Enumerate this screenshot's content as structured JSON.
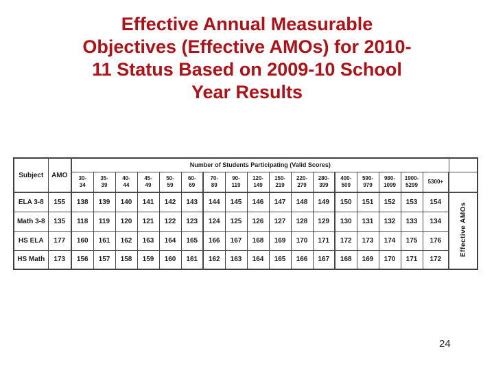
{
  "title": {
    "lines": [
      "Effective Annual Measurable",
      "Objectives (Effective AMOs) for 2010-",
      "11 Status Based on 2009-10 School",
      "Year Results"
    ],
    "color": "#b01116"
  },
  "page_number": "24",
  "table": {
    "subject_header": "Subject",
    "amo_header": "AMO",
    "group_header": "Number of Students Participating (Valid Scores)",
    "side_label": "Effective AMOs",
    "bins": [
      "30-\n34",
      "35-\n39",
      "40-\n44",
      "45-\n49",
      "50-\n59",
      "60-\n69",
      "70-\n89",
      "90-\n119",
      "120-\n149",
      "150-\n219",
      "220-\n279",
      "280-\n399",
      "400-\n509",
      "590-\n979",
      "980-\n1099",
      "1900-\n5299",
      "5300+"
    ],
    "thick_after_bins": [
      5,
      11,
      16
    ],
    "rows": [
      {
        "subject": "ELA 3-8",
        "amo": "155",
        "values": [
          138,
          139,
          140,
          141,
          142,
          143,
          144,
          145,
          146,
          147,
          148,
          149,
          150,
          151,
          152,
          153,
          154
        ]
      },
      {
        "subject": "Math 3-8",
        "amo": "135",
        "values": [
          118,
          119,
          120,
          121,
          122,
          123,
          124,
          125,
          126,
          127,
          128,
          129,
          130,
          131,
          132,
          133,
          134
        ]
      },
      {
        "subject": "HS ELA",
        "amo": "177",
        "values": [
          160,
          161,
          162,
          163,
          164,
          165,
          166,
          167,
          168,
          169,
          170,
          171,
          172,
          173,
          174,
          175,
          176
        ]
      },
      {
        "subject": "HS Math",
        "amo": "173",
        "values": [
          156,
          157,
          158,
          159,
          160,
          161,
          162,
          163,
          164,
          165,
          166,
          167,
          168,
          169,
          170,
          171,
          172
        ]
      }
    ]
  }
}
